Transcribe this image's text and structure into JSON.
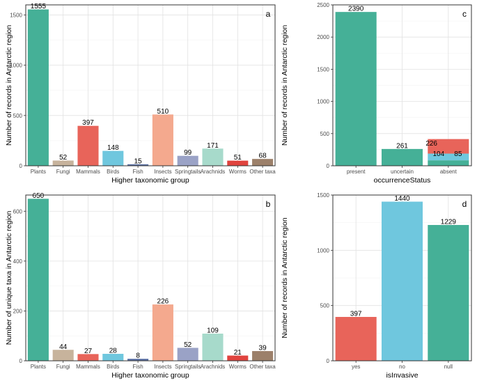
{
  "chart_data": [
    {
      "id": "a",
      "type": "bar",
      "panel_label": "a",
      "xlabel": "Higher taxonomic group",
      "ylabel": "Number of records in Antarctic region",
      "ylim": [
        0,
        1600
      ],
      "yticks": [
        0,
        500,
        1000,
        1500
      ],
      "categories": [
        "Plants",
        "Fungi",
        "Mammals",
        "Birds",
        "Fish",
        "Insects",
        "Springtails",
        "Arachnids",
        "Worms",
        "Other taxa"
      ],
      "values": [
        1555,
        52,
        397,
        148,
        15,
        510,
        99,
        171,
        51,
        68
      ],
      "labels": [
        "1555",
        "52",
        "397",
        "148",
        "15",
        "510",
        "99",
        "171",
        "51",
        "68"
      ],
      "colors": [
        "#45B097",
        "#C7B39C",
        "#E8645A",
        "#6FC7DE",
        "#5B70A3",
        "#F4A98E",
        "#9AA2C6",
        "#A7DACB",
        "#E0433E",
        "#9C806A"
      ]
    },
    {
      "id": "b",
      "type": "bar",
      "panel_label": "b",
      "xlabel": "Higher taxonomic group",
      "ylabel": "Number of unique taxa in Antarctic region",
      "ylim": [
        0,
        665
      ],
      "yticks": [
        0,
        200,
        400,
        600
      ],
      "categories": [
        "Plants",
        "Fungi",
        "Mammals",
        "Birds",
        "Fish",
        "Insects",
        "Springtails",
        "Arachnids",
        "Worms",
        "Other taxa"
      ],
      "values": [
        650,
        44,
        27,
        28,
        8,
        226,
        52,
        109,
        21,
        39
      ],
      "labels": [
        "650",
        "44",
        "27",
        "28",
        "8",
        "226",
        "52",
        "109",
        "21",
        "39"
      ],
      "colors": [
        "#45B097",
        "#C7B39C",
        "#E8645A",
        "#6FC7DE",
        "#5B70A3",
        "#F4A98E",
        "#9AA2C6",
        "#A7DACB",
        "#E0433E",
        "#9C806A"
      ]
    },
    {
      "id": "c",
      "type": "stacked-bar",
      "panel_label": "c",
      "xlabel": "occurrenceStatus",
      "ylabel": "Number of records in Antarctic region",
      "ylim": [
        0,
        2500
      ],
      "yticks": [
        0,
        500,
        1000,
        1500,
        2000,
        2500
      ],
      "categories": [
        "present",
        "uncertain",
        "absent"
      ],
      "series": [
        {
          "name": "segment-1",
          "color": "#45B097",
          "values": [
            2390,
            261,
            85
          ]
        },
        {
          "name": "segment-2",
          "color": "#6FC7DE",
          "values": [
            0,
            0,
            104
          ]
        },
        {
          "name": "segment-3",
          "color": "#E8645A",
          "values": [
            0,
            0,
            226
          ]
        }
      ],
      "annotations": [
        {
          "text": "2390",
          "category": "present",
          "y": 2390
        },
        {
          "text": "261",
          "category": "uncertain",
          "y": 261
        },
        {
          "text": "226",
          "category": "absent",
          "y": 295
        },
        {
          "text": "104",
          "category": "absent",
          "y": 137
        },
        {
          "text": "85",
          "category": "absent",
          "y": 137
        }
      ]
    },
    {
      "id": "d",
      "type": "bar",
      "panel_label": "d",
      "xlabel": "isInvasive",
      "ylabel": "Number of records in Antarctic region",
      "ylim": [
        0,
        1500
      ],
      "yticks": [
        0,
        500,
        1000,
        1500
      ],
      "categories": [
        "yes",
        "no",
        "null"
      ],
      "values": [
        397,
        1440,
        1229
      ],
      "labels": [
        "397",
        "1440",
        "1229"
      ],
      "colors": [
        "#E8645A",
        "#6FC7DE",
        "#45B097"
      ]
    }
  ]
}
